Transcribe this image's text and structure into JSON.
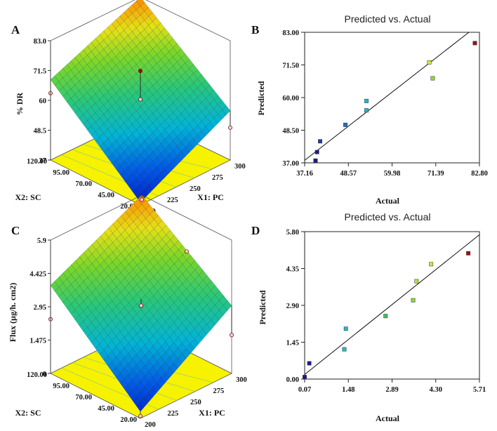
{
  "chart_data": [
    {
      "panel": "A",
      "type": "surface3d",
      "xlabel": "X1: PC",
      "ylabel": "X2: SC",
      "zlabel": "% DR",
      "x_ticks": [
        "200",
        "225",
        "250",
        "275",
        "300"
      ],
      "y_ticks": [
        "20.00",
        "45.00",
        "70.00",
        "95.00",
        "120.00"
      ],
      "z_ticks": [
        "37",
        "48.5",
        "60",
        "71.5",
        "83.0"
      ],
      "xlim": [
        200,
        300
      ],
      "ylim": [
        20,
        120
      ],
      "zlim": [
        37,
        83
      ],
      "surface_corners": {
        "x200_y20": 38,
        "x300_y20": 56,
        "x200_y120": 68,
        "x300_y120": 83
      },
      "design_points": [
        {
          "x": 200,
          "y": 20,
          "z": 37.2
        },
        {
          "x": 300,
          "y": 20,
          "z": 49.5
        },
        {
          "x": 200,
          "y": 120,
          "z": 62.8
        },
        {
          "x": 300,
          "y": 120,
          "z": 82.8
        },
        {
          "x": 250,
          "y": 70,
          "z": 71.5
        },
        {
          "x": 250,
          "y": 70,
          "z": 60.5
        }
      ],
      "colors": {
        "floor": "#f6f200",
        "high": "#ff8a00",
        "mid": "#3ccf60",
        "low": "#0025d0",
        "point": "#b00000"
      }
    },
    {
      "panel": "B",
      "type": "scatter",
      "title": "Predicted vs. Actual",
      "xlabel": "Actual",
      "ylabel": "Predicted",
      "x_ticks": [
        "37.16",
        "48.57",
        "59.98",
        "71.39",
        "82.80"
      ],
      "y_ticks": [
        "37.00",
        "48.50",
        "60.00",
        "71.50",
        "83.00"
      ],
      "xlim": [
        37.16,
        82.8
      ],
      "ylim": [
        37,
        83
      ],
      "points": [
        {
          "x": 40.0,
          "y": 37.8,
          "color": "#1b1b8a"
        },
        {
          "x": 40.4,
          "y": 40.8,
          "color": "#1b1b8a"
        },
        {
          "x": 41.2,
          "y": 44.6,
          "color": "#1f3f9e"
        },
        {
          "x": 47.8,
          "y": 50.4,
          "color": "#1c6fbf"
        },
        {
          "x": 53.3,
          "y": 55.5,
          "color": "#29b6c4"
        },
        {
          "x": 53.3,
          "y": 58.8,
          "color": "#29b6c4"
        },
        {
          "x": 69.7,
          "y": 72.4,
          "color": "#c8e83a"
        },
        {
          "x": 70.6,
          "y": 66.8,
          "color": "#8fd43a"
        },
        {
          "x": 81.6,
          "y": 79.2,
          "color": "#a01010"
        }
      ],
      "fit_line": [
        [
          37.16,
          37.9
        ],
        [
          82.8,
          85.9
        ]
      ]
    },
    {
      "panel": "C",
      "type": "surface3d",
      "xlabel": "X1: PC",
      "ylabel": "X2: SC",
      "zlabel": "Flux (µg/h. cm2)",
      "x_ticks": [
        "200",
        "225",
        "250",
        "275",
        "300"
      ],
      "y_ticks": [
        "20.00",
        "45.00",
        "70.00",
        "95.00",
        "120.00"
      ],
      "z_ticks": [
        "0",
        "1.475",
        "2.95",
        "4.425",
        "5.9"
      ],
      "xlim": [
        200,
        300
      ],
      "ylim": [
        20,
        120
      ],
      "zlim": [
        0,
        5.9
      ],
      "surface_corners": {
        "x200_y20": 0.3,
        "x300_y20": 3.0,
        "x200_y120": 3.9,
        "x300_y120": 5.9
      },
      "design_points": [
        {
          "x": 200,
          "y": 20,
          "z": 0.1
        },
        {
          "x": 300,
          "y": 20,
          "z": 1.7
        },
        {
          "x": 200,
          "y": 120,
          "z": 2.4
        },
        {
          "x": 300,
          "y": 120,
          "z": 5.7
        },
        {
          "x": 250,
          "y": 70,
          "z": 3.0
        },
        {
          "x": 300,
          "y": 70,
          "z": 4.4
        }
      ],
      "colors": {
        "floor": "#f6f200",
        "high": "#ff8a00",
        "mid": "#3ccf60",
        "low": "#0025d0",
        "point": "#b00000"
      }
    },
    {
      "panel": "D",
      "type": "scatter",
      "title": "Predicted vs. Actual",
      "xlabel": "Actual",
      "ylabel": "Predicted",
      "x_ticks": [
        "0.07",
        "1.48",
        "2.89",
        "4.30",
        "5.71"
      ],
      "y_ticks": [
        "0.00",
        "1.45",
        "2.90",
        "4.35",
        "5.80"
      ],
      "xlim": [
        0.07,
        5.71
      ],
      "ylim": [
        0,
        5.8
      ],
      "points": [
        {
          "x": 0.07,
          "y": 0.08,
          "color": "#1b1b8a"
        },
        {
          "x": 0.22,
          "y": 0.62,
          "color": "#1b1b8a"
        },
        {
          "x": 1.35,
          "y": 1.17,
          "color": "#29b6c4"
        },
        {
          "x": 1.4,
          "y": 1.98,
          "color": "#29b6c4"
        },
        {
          "x": 2.68,
          "y": 2.48,
          "color": "#3cc35a"
        },
        {
          "x": 3.57,
          "y": 3.1,
          "color": "#8fd43a"
        },
        {
          "x": 3.68,
          "y": 3.85,
          "color": "#b0e03a"
        },
        {
          "x": 4.15,
          "y": 4.52,
          "color": "#c8e83a"
        },
        {
          "x": 5.35,
          "y": 4.95,
          "color": "#a01010"
        }
      ],
      "fit_line": [
        [
          0.07,
          0.18
        ],
        [
          5.71,
          5.68
        ]
      ]
    }
  ]
}
